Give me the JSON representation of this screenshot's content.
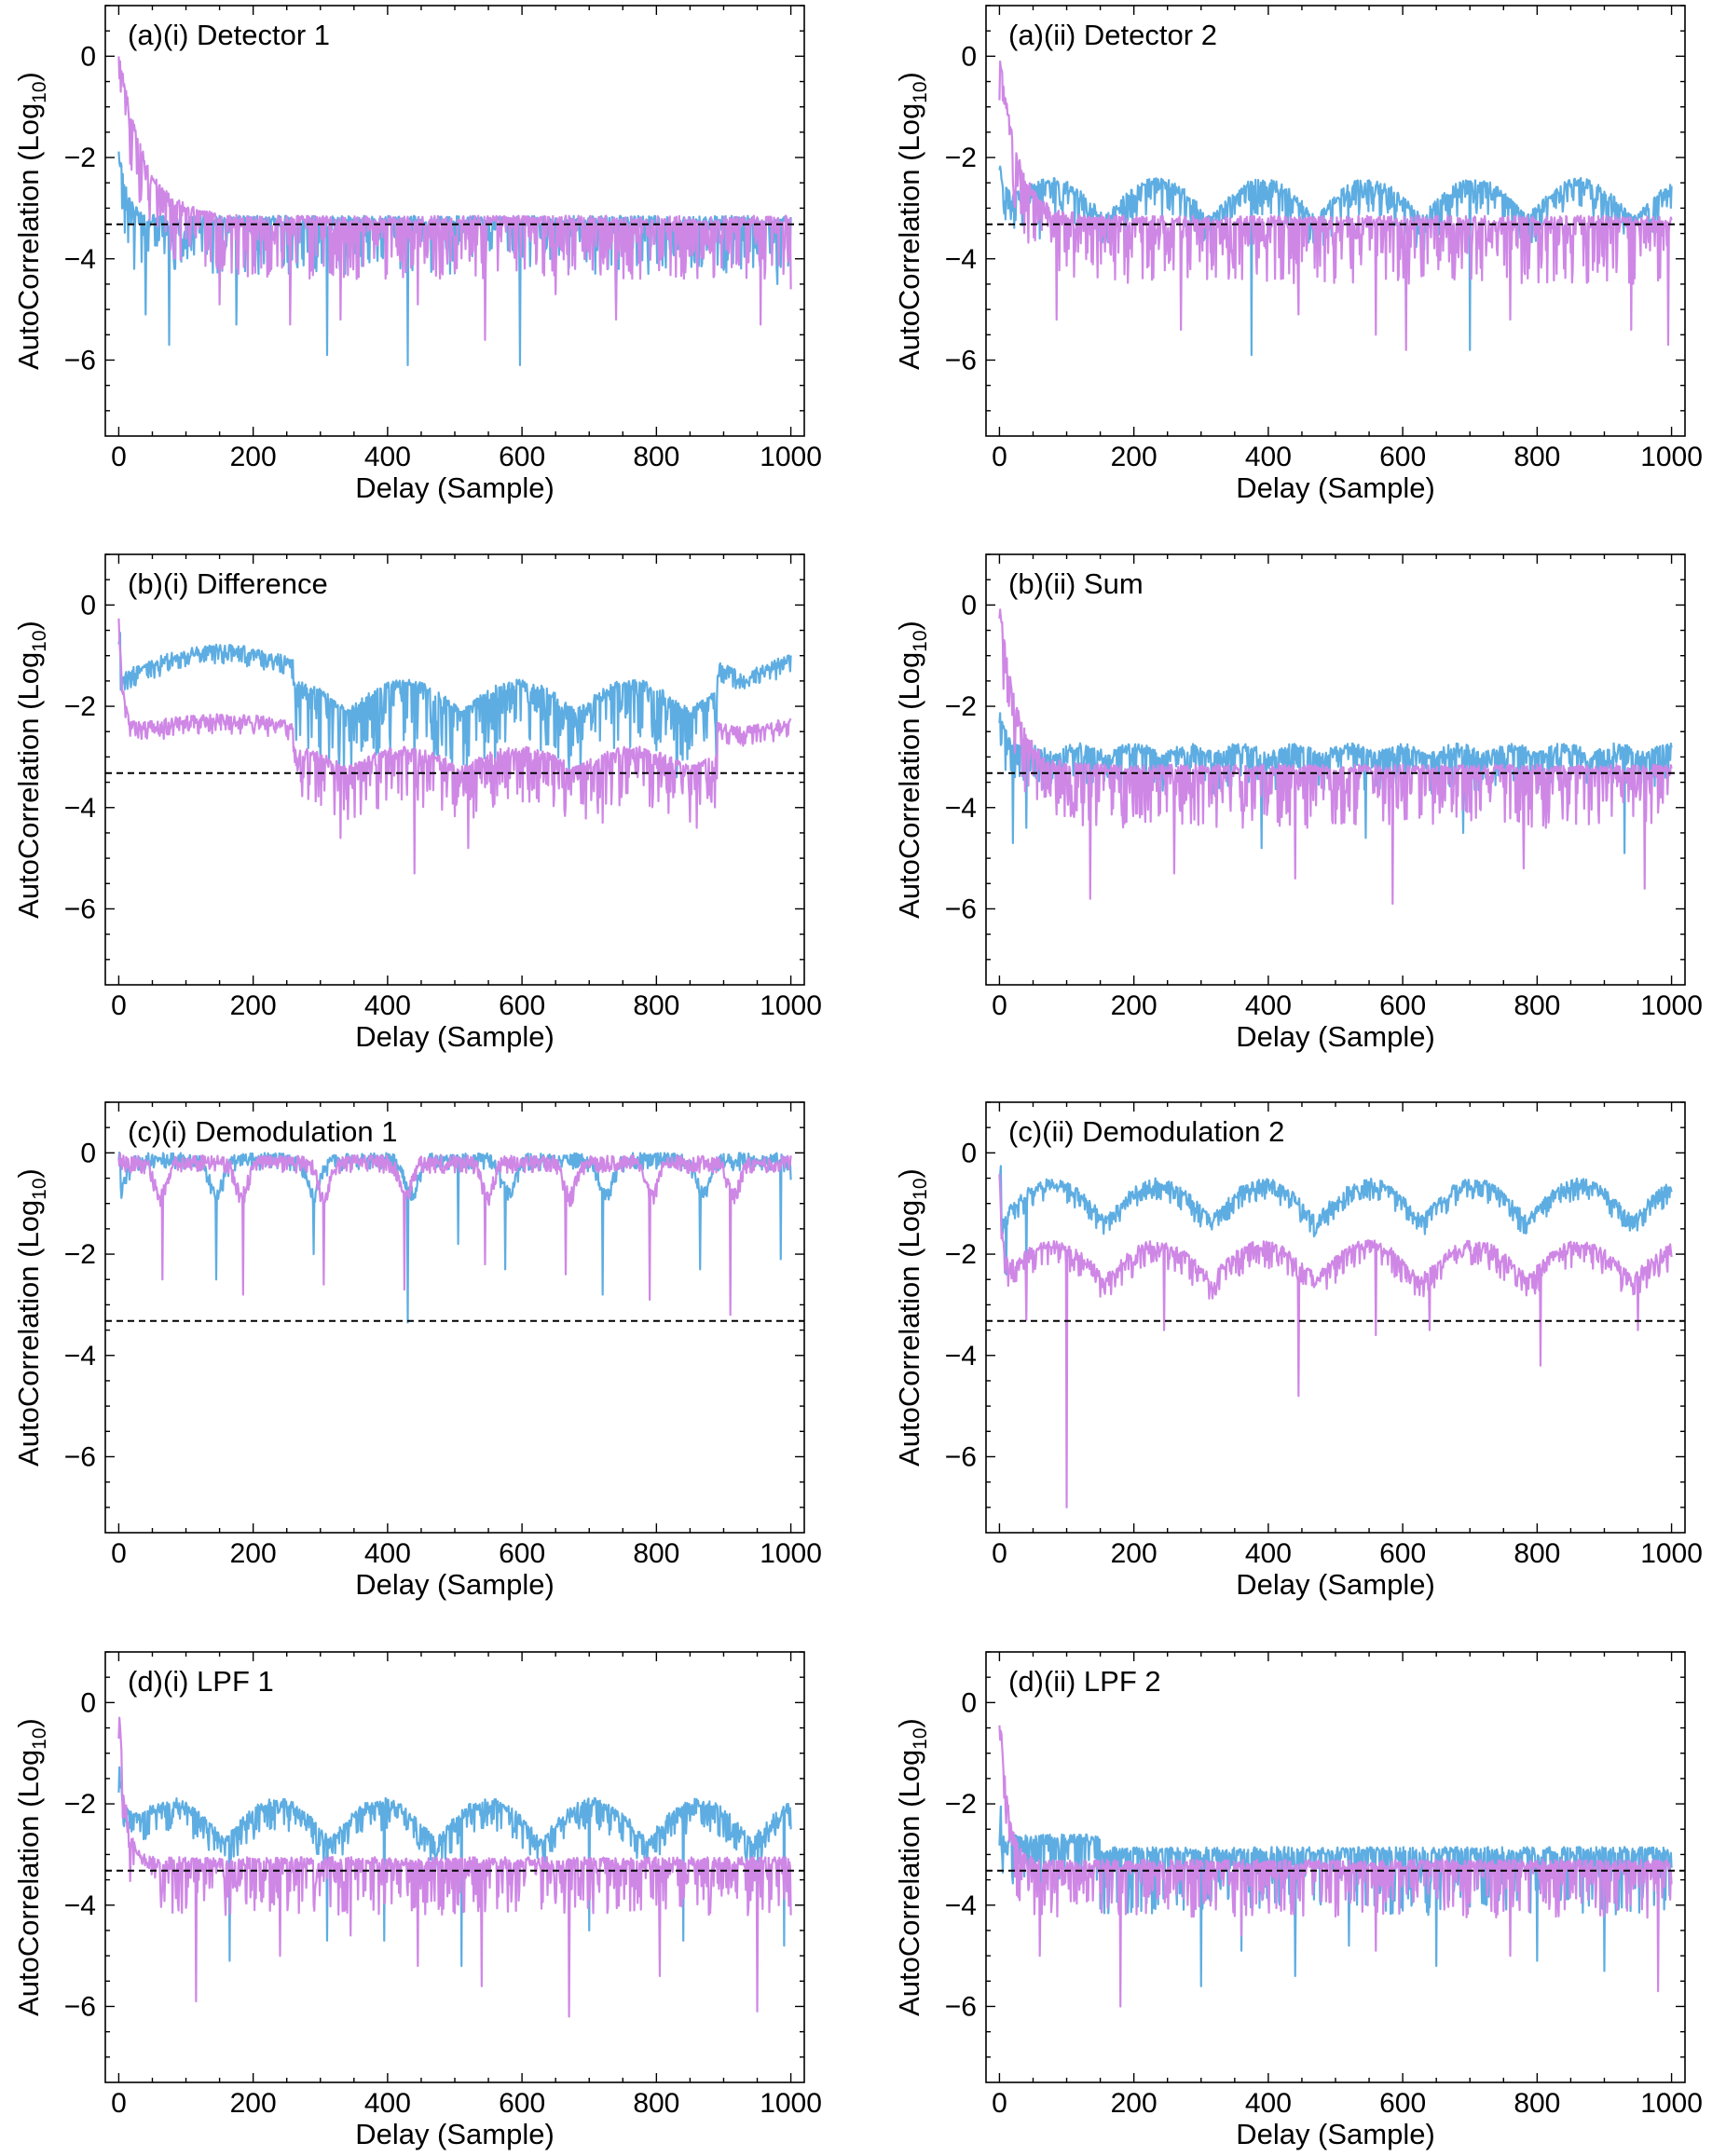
{
  "colors": {
    "series_blue": "#5dade2",
    "series_violet": "#cf87e6",
    "threshold": "#000000",
    "axis": "#000000"
  },
  "chart_data": [
    {
      "type": "line",
      "panel": "a-i",
      "title": "(a)(i) Detector 1",
      "xlabel": "Delay (Sample)",
      "ylabel": "AutoCorrelation (Log10)",
      "xlim": [
        -20,
        1020
      ],
      "ylim": [
        -7.5,
        1.0
      ],
      "xticks": [
        0,
        200,
        400,
        600,
        800,
        1000
      ],
      "yticks": [
        0,
        -2,
        -4,
        -6
      ],
      "threshold": -3.32,
      "series": [
        {
          "color": "#5dade2",
          "start": -1.8,
          "base": -3.3,
          "decay": 12,
          "lobes": 0,
          "lobe_amp": 0,
          "lobe_step": 600,
          "lobe_phase": 0,
          "dip_amp": 1.0,
          "deep_dips": [
            [
              23,
              -4.2
            ],
            [
              40,
              -5.1
            ],
            [
              75,
              -5.7
            ],
            [
              175,
              -5.3
            ],
            [
              310,
              -5.9
            ],
            [
              430,
              -6.1
            ],
            [
              597,
              -6.1
            ],
            [
              740,
              -4.9
            ],
            [
              980,
              -4.5
            ]
          ]
        },
        {
          "color": "#cf87e6",
          "start": 0.0,
          "base": -3.3,
          "decay": 38,
          "lobes": 0,
          "lobe_amp": 0,
          "lobe_step": 600,
          "lobe_phase": 0,
          "dip_amp": 1.1,
          "deep_dips": [
            [
              150,
              -4.9
            ],
            [
              255,
              -5.3
            ],
            [
              330,
              -5.2
            ],
            [
              445,
              -4.9
            ],
            [
              545,
              -5.6
            ],
            [
              650,
              -4.7
            ],
            [
              740,
              -5.2
            ],
            [
              955,
              -5.3
            ],
            [
              1000,
              -4.6
            ]
          ]
        }
      ]
    },
    {
      "type": "line",
      "panel": "a-ii",
      "title": "(a)(ii) Detector 2",
      "xlabel": "Delay (Sample)",
      "ylabel": "AutoCorrelation (Log10)",
      "xlim": [
        -20,
        1020
      ],
      "ylim": [
        -7.5,
        1.0
      ],
      "xticks": [
        0,
        200,
        400,
        600,
        800,
        1000
      ],
      "yticks": [
        0,
        -2,
        -4,
        -6
      ],
      "threshold": -3.32,
      "series": [
        {
          "color": "#5dade2",
          "start": -1.8,
          "base": -2.85,
          "decay": 12,
          "lobes": 1,
          "lobe_amp": 0.75,
          "lobe_step": 157,
          "lobe_phase": 0,
          "dip_amp": 0.6,
          "deep_dips": [
            [
              60,
              -3.6
            ],
            [
              375,
              -5.9
            ],
            [
              700,
              -5.8
            ]
          ]
        },
        {
          "color": "#cf87e6",
          "start": 0.0,
          "base": -3.3,
          "decay": 28,
          "lobes": 0,
          "lobe_amp": 0,
          "lobe_step": 600,
          "lobe_phase": 0,
          "dip_amp": 1.2,
          "deep_dips": [
            [
              85,
              -5.2
            ],
            [
              270,
              -5.4
            ],
            [
              445,
              -5.1
            ],
            [
              560,
              -5.5
            ],
            [
              605,
              -5.8
            ],
            [
              760,
              -5.2
            ],
            [
              940,
              -5.4
            ],
            [
              995,
              -5.7
            ]
          ]
        }
      ]
    },
    {
      "type": "line",
      "panel": "b-i",
      "title": "(b)(i) Difference",
      "xlabel": "Delay (Sample)",
      "ylabel": "AutoCorrelation (Log10)",
      "xlim": [
        -20,
        1020
      ],
      "ylim": [
        -7.5,
        1.0
      ],
      "xticks": [
        0,
        200,
        400,
        600,
        800,
        1000
      ],
      "yticks": [
        0,
        -2,
        -4,
        -6
      ],
      "threshold": -3.32,
      "series": [
        {
          "color": "#5dade2",
          "start": -0.6,
          "base": -1.15,
          "decay": 0,
          "lobes": 1,
          "lobe_amp": 0.55,
          "lobe_step": 310,
          "lobe_phase": 0,
          "dip_amp": 0.25,
          "regime": [
            [
              260,
              890,
              -1.85,
              0.6,
              170,
              1.2
            ]
          ],
          "deep_dips": [
            [
              300,
              -3.4
            ],
            [
              440,
              -3.5
            ],
            [
              560,
              -3.5
            ],
            [
              830,
              -3.4
            ]
          ]
        },
        {
          "color": "#cf87e6",
          "start": 0.0,
          "base": -2.4,
          "decay": 6,
          "lobes": 1,
          "lobe_amp": 0.25,
          "lobe_step": 310,
          "lobe_phase": 0,
          "dip_amp": 0.25,
          "regime": [
            [
              260,
              890,
              -3.1,
              0.4,
              170,
              1.0
            ]
          ],
          "deep_dips": [
            [
              440,
              -5.3
            ],
            [
              330,
              -4.6
            ],
            [
              520,
              -4.8
            ],
            [
              720,
              -4.3
            ],
            [
              860,
              -4.4
            ]
          ]
        }
      ]
    },
    {
      "type": "line",
      "panel": "b-ii",
      "title": "(b)(ii) Sum",
      "xlabel": "Delay (Sample)",
      "ylabel": "AutoCorrelation (Log10)",
      "xlim": [
        -20,
        1020
      ],
      "ylim": [
        -7.5,
        1.0
      ],
      "xticks": [
        0,
        200,
        400,
        600,
        800,
        1000
      ],
      "yticks": [
        0,
        -2,
        -4,
        -6
      ],
      "threshold": -3.32,
      "series": [
        {
          "color": "#5dade2",
          "start": -1.9,
          "base": -2.95,
          "decay": 10,
          "lobes": 1,
          "lobe_amp": 0.2,
          "lobe_step": 80,
          "lobe_phase": 0,
          "dip_amp": 0.7,
          "deep_dips": [
            [
              20,
              -4.7
            ],
            [
              40,
              -4.4
            ],
            [
              390,
              -4.8
            ],
            [
              545,
              -4.6
            ],
            [
              690,
              -4.5
            ],
            [
              930,
              -4.9
            ]
          ]
        },
        {
          "color": "#cf87e6",
          "start": 0.0,
          "base": -3.3,
          "decay": 25,
          "lobes": 0,
          "lobe_amp": 0,
          "lobe_step": 600,
          "lobe_phase": 0,
          "dip_amp": 1.1,
          "deep_dips": [
            [
              135,
              -5.8
            ],
            [
              260,
              -5.3
            ],
            [
              440,
              -5.4
            ],
            [
              585,
              -5.9
            ],
            [
              780,
              -5.2
            ],
            [
              960,
              -5.6
            ]
          ]
        }
      ]
    },
    {
      "type": "line",
      "panel": "c-i",
      "title": "(c)(i) Demodulation 1",
      "xlabel": "Delay (Sample)",
      "ylabel": "AutoCorrelation (Log10)",
      "xlim": [
        -20,
        1020
      ],
      "ylim": [
        -7.5,
        1.0
      ],
      "xticks": [
        0,
        200,
        400,
        600,
        800,
        1000
      ],
      "yticks": [
        0,
        -2,
        -4,
        -6
      ],
      "threshold": -3.32,
      "series": [
        {
          "color": "#5dade2",
          "start": -0.1,
          "base": -0.15,
          "decay": 0,
          "lobes": 2,
          "lobe_amp": 1.1,
          "lobe_step": 145,
          "lobe_phase": 0,
          "dip_amp": 0.2,
          "deep_dips": [
            [
              145,
              -2.5
            ],
            [
              290,
              -2.0
            ],
            [
              430,
              -3.35
            ],
            [
              505,
              -1.8
            ],
            [
              575,
              -2.3
            ],
            [
              720,
              -2.8
            ],
            [
              865,
              -2.3
            ],
            [
              985,
              -2.1
            ]
          ]
        },
        {
          "color": "#cf87e6",
          "start": -0.1,
          "base": -0.2,
          "decay": 0,
          "lobes": 2,
          "lobe_amp": 1.1,
          "lobe_step": 122,
          "lobe_phase": 61,
          "dip_amp": 0.2,
          "deep_dips": [
            [
              65,
              -2.5
            ],
            [
              185,
              -2.8
            ],
            [
              305,
              -2.6
            ],
            [
              425,
              -2.7
            ],
            [
              545,
              -2.2
            ],
            [
              665,
              -2.4
            ],
            [
              790,
              -2.9
            ],
            [
              910,
              -3.2
            ]
          ]
        }
      ]
    },
    {
      "type": "line",
      "panel": "c-ii",
      "title": "(c)(ii) Demodulation 2",
      "xlabel": "Delay (Sample)",
      "ylabel": "AutoCorrelation (Log10)",
      "xlim": [
        -20,
        1020
      ],
      "ylim": [
        -7.5,
        1.0
      ],
      "xticks": [
        0,
        200,
        400,
        600,
        800,
        1000
      ],
      "yticks": [
        0,
        -2,
        -4,
        -6
      ],
      "threshold": -3.32,
      "series": [
        {
          "color": "#5dade2",
          "start": -0.4,
          "base": -0.95,
          "decay": 0,
          "lobes": 1,
          "lobe_amp": 0.75,
          "lobe_step": 157,
          "lobe_phase": 0,
          "dip_amp": 0.3,
          "deep_dips": [
            [
              10,
              -2.4
            ],
            [
              40,
              -2.5
            ]
          ]
        },
        {
          "color": "#cf87e6",
          "start": 0.0,
          "base": -2.15,
          "decay": 5,
          "lobes": 1,
          "lobe_amp": 0.7,
          "lobe_step": 157,
          "lobe_phase": 0,
          "dip_amp": 0.4,
          "deep_dips": [
            [
              40,
              -3.3
            ],
            [
              100,
              -7.0
            ],
            [
              245,
              -3.5
            ],
            [
              445,
              -4.8
            ],
            [
              560,
              -3.6
            ],
            [
              640,
              -3.5
            ],
            [
              805,
              -4.2
            ],
            [
              950,
              -3.5
            ]
          ]
        }
      ]
    },
    {
      "type": "line",
      "panel": "d-i",
      "title": "(d)(i) LPF 1",
      "xlabel": "Delay (Sample)",
      "ylabel": "AutoCorrelation (Log10)",
      "xlim": [
        -20,
        1020
      ],
      "ylim": [
        -7.5,
        1.0
      ],
      "xticks": [
        0,
        200,
        400,
        600,
        800,
        1000
      ],
      "yticks": [
        0,
        -2,
        -4,
        -6
      ],
      "threshold": -3.32,
      "series": [
        {
          "color": "#5dade2",
          "start": -0.8,
          "base": -2.35,
          "decay": 10,
          "lobes": 1,
          "lobe_amp": 0.8,
          "lobe_step": 157,
          "lobe_phase": 0,
          "dip_amp": 0.5,
          "deep_dips": [
            [
              165,
              -5.1
            ],
            [
              310,
              -4.7
            ],
            [
              395,
              -4.7
            ],
            [
              510,
              -5.2
            ],
            [
              700,
              -4.5
            ],
            [
              840,
              -4.7
            ],
            [
              990,
              -4.8
            ]
          ]
        },
        {
          "color": "#cf87e6",
          "start": 0.0,
          "base": -3.2,
          "decay": 10,
          "lobes": 0,
          "lobe_amp": 0,
          "lobe_step": 600,
          "lobe_phase": 0,
          "dip_amp": 1.0,
          "deep_dips": [
            [
              115,
              -5.9
            ],
            [
              240,
              -5.0
            ],
            [
              345,
              -4.6
            ],
            [
              445,
              -5.2
            ],
            [
              540,
              -5.6
            ],
            [
              670,
              -6.2
            ],
            [
              805,
              -5.4
            ],
            [
              950,
              -6.1
            ]
          ]
        }
      ]
    },
    {
      "type": "line",
      "panel": "d-ii",
      "title": "(d)(ii) LPF 2",
      "xlabel": "Delay (Sample)",
      "ylabel": "AutoCorrelation (Log10)",
      "xlim": [
        -20,
        1020
      ],
      "ylim": [
        -7.5,
        1.0
      ],
      "xticks": [
        0,
        200,
        400,
        600,
        800,
        1000
      ],
      "yticks": [
        0,
        -2,
        -4,
        -6
      ],
      "threshold": -3.32,
      "series": [
        {
          "color": "#5dade2",
          "start": -2.2,
          "base": -2.75,
          "decay": 0,
          "lobes": 0,
          "lobe_amp": 0,
          "lobe_step": 600,
          "lobe_phase": 0,
          "dip_amp": 0.9,
          "regime": [
            [
              150,
              1000,
              -3.0,
              0.15,
              100,
              1.2
            ]
          ],
          "deep_dips": [
            [
              300,
              -5.6
            ],
            [
              360,
              -4.9
            ],
            [
              440,
              -5.4
            ],
            [
              520,
              -4.8
            ],
            [
              650,
              -5.2
            ],
            [
              800,
              -5.1
            ],
            [
              900,
              -5.3
            ]
          ]
        },
        {
          "color": "#cf87e6",
          "start": 0.0,
          "base": -3.25,
          "decay": 12,
          "lobes": 0,
          "lobe_amp": 0,
          "lobe_step": 600,
          "lobe_phase": 0,
          "dip_amp": 1.0,
          "deep_dips": [
            [
              60,
              -5.0
            ],
            [
              180,
              -6.0
            ],
            [
              360,
              -4.6
            ],
            [
              560,
              -4.9
            ],
            [
              760,
              -5.0
            ],
            [
              980,
              -5.7
            ]
          ]
        }
      ]
    }
  ]
}
